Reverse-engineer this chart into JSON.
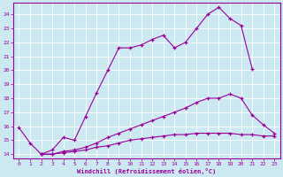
{
  "xlabel": "Windchill (Refroidissement éolien,°C)",
  "xlim": [
    -0.5,
    23.5
  ],
  "ylim": [
    13.7,
    24.8
  ],
  "xticks": [
    0,
    1,
    2,
    3,
    4,
    5,
    6,
    7,
    8,
    9,
    10,
    11,
    12,
    13,
    14,
    15,
    16,
    17,
    18,
    19,
    20,
    21,
    22,
    23
  ],
  "yticks": [
    14,
    15,
    16,
    17,
    18,
    19,
    20,
    21,
    22,
    23,
    24
  ],
  "bg_color": "#cce8f0",
  "line_color": "#990099",
  "grid_color": "#aaccdd",
  "line1_x": [
    0,
    1,
    2,
    3,
    4,
    5,
    6,
    7,
    8,
    9,
    10,
    11,
    12,
    13,
    14,
    15,
    16,
    17,
    18,
    19,
    20,
    21
  ],
  "line1_y": [
    15.9,
    14.8,
    14.0,
    14.3,
    15.2,
    15.0,
    16.7,
    18.4,
    20.0,
    21.6,
    21.6,
    21.8,
    22.2,
    22.5,
    21.6,
    22.0,
    23.0,
    24.0,
    24.5,
    23.7,
    23.2,
    20.1
  ],
  "line2_x": [
    2,
    3,
    4,
    5,
    6,
    7,
    8,
    9,
    10,
    11,
    12,
    13,
    14,
    15,
    16,
    17,
    18,
    19,
    20,
    21,
    22,
    23
  ],
  "line2_y": [
    14.0,
    14.0,
    14.2,
    14.3,
    14.5,
    14.8,
    15.2,
    15.5,
    15.8,
    16.1,
    16.4,
    16.7,
    17.0,
    17.3,
    17.7,
    18.0,
    18.0,
    18.3,
    18.0,
    16.8,
    16.1,
    15.5
  ],
  "line3_x": [
    2,
    3,
    4,
    5,
    6,
    7,
    8,
    9,
    10,
    11,
    12,
    13,
    14,
    15,
    16,
    17,
    18,
    19,
    20,
    21,
    22,
    23
  ],
  "line3_y": [
    14.0,
    14.0,
    14.1,
    14.2,
    14.3,
    14.5,
    14.6,
    14.8,
    15.0,
    15.1,
    15.2,
    15.3,
    15.4,
    15.4,
    15.5,
    15.5,
    15.5,
    15.5,
    15.4,
    15.4,
    15.3,
    15.3
  ]
}
